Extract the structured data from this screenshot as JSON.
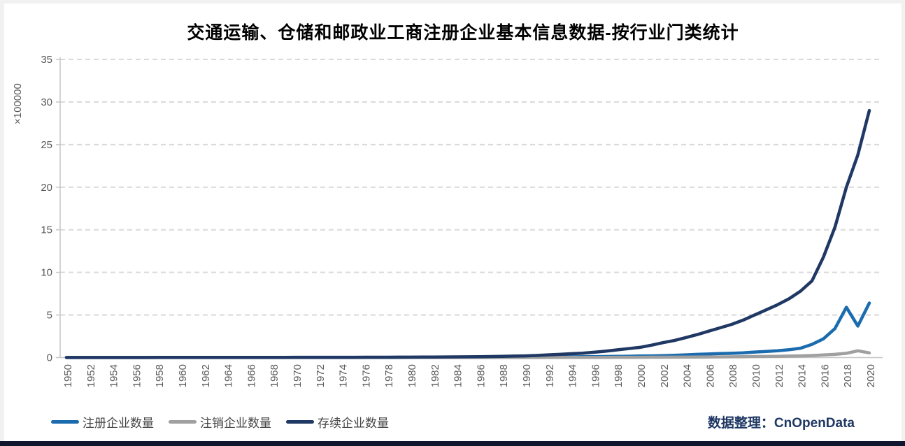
{
  "header": {
    "title": "交通运输、仓储和邮政业工商注册企业基本信息数据-按行业门类统计"
  },
  "footer": {
    "credit": "数据整理：CnOpenData"
  },
  "colors": {
    "registered_line": "#1b6cae",
    "deregistered_line": "#a0a0a0",
    "surviving_line": "#1f3864",
    "grid": "#d9d9d9",
    "axis": "#c6c6c6",
    "tick_text": "#595959",
    "credit_text": "#1f3864",
    "bottom_bar": "#11152e"
  },
  "chart_data": {
    "type": "line",
    "title": "交通运输、仓储和邮政业工商注册企业基本信息数据-按行业门类统计",
    "xlabel": "",
    "ylabel": "×100000",
    "ylim": [
      0,
      35
    ],
    "yticks": [
      0,
      5,
      10,
      15,
      20,
      25,
      30,
      35
    ],
    "xticks": [
      1950,
      1952,
      1954,
      1956,
      1958,
      1960,
      1962,
      1964,
      1966,
      1968,
      1970,
      1972,
      1974,
      1976,
      1978,
      1980,
      1982,
      1984,
      1986,
      1988,
      1990,
      1992,
      1994,
      1996,
      1998,
      2000,
      2002,
      2004,
      2006,
      2008,
      2010,
      2012,
      2014,
      2016,
      2018,
      2020
    ],
    "grid": "dashed-horizontal",
    "legend_position": "bottom-left",
    "x": [
      1950,
      1951,
      1952,
      1953,
      1954,
      1955,
      1956,
      1957,
      1958,
      1959,
      1960,
      1961,
      1962,
      1963,
      1964,
      1965,
      1966,
      1967,
      1968,
      1969,
      1970,
      1971,
      1972,
      1973,
      1974,
      1975,
      1976,
      1977,
      1978,
      1979,
      1980,
      1981,
      1982,
      1983,
      1984,
      1985,
      1986,
      1987,
      1988,
      1989,
      1990,
      1991,
      1992,
      1993,
      1994,
      1995,
      1996,
      1997,
      1998,
      1999,
      2000,
      2001,
      2002,
      2003,
      2004,
      2005,
      2006,
      2007,
      2008,
      2009,
      2010,
      2011,
      2012,
      2013,
      2014,
      2015,
      2016,
      2017,
      2018,
      2019,
      2020
    ],
    "series": [
      {
        "name": "注册企业数量",
        "color": "#1b6cae",
        "values": [
          0.01,
          0.01,
          0.01,
          0.01,
          0.01,
          0.01,
          0.01,
          0.01,
          0.01,
          0.01,
          0.01,
          0.01,
          0.01,
          0.01,
          0.01,
          0.01,
          0.01,
          0.01,
          0.01,
          0.01,
          0.01,
          0.01,
          0.01,
          0.01,
          0.01,
          0.01,
          0.01,
          0.01,
          0.01,
          0.01,
          0.02,
          0.02,
          0.02,
          0.03,
          0.03,
          0.03,
          0.04,
          0.04,
          0.04,
          0.05,
          0.05,
          0.06,
          0.07,
          0.08,
          0.09,
          0.1,
          0.11,
          0.12,
          0.14,
          0.16,
          0.18,
          0.2,
          0.23,
          0.27,
          0.32,
          0.38,
          0.42,
          0.47,
          0.5,
          0.55,
          0.65,
          0.72,
          0.8,
          0.92,
          1.1,
          1.55,
          2.2,
          3.4,
          5.9,
          3.7,
          6.4
        ]
      },
      {
        "name": "注销企业数量",
        "color": "#a0a0a0",
        "values": [
          0.01,
          0.01,
          0.01,
          0.01,
          0.01,
          0.01,
          0.01,
          0.01,
          0.01,
          0.01,
          0.01,
          0.01,
          0.01,
          0.01,
          0.01,
          0.01,
          0.01,
          0.01,
          0.01,
          0.01,
          0.01,
          0.01,
          0.01,
          0.01,
          0.01,
          0.01,
          0.01,
          0.01,
          0.01,
          0.01,
          0.01,
          0.01,
          0.01,
          0.01,
          0.01,
          0.01,
          0.01,
          0.01,
          0.01,
          0.01,
          0.01,
          0.01,
          0.02,
          0.02,
          0.02,
          0.02,
          0.02,
          0.02,
          0.03,
          0.03,
          0.03,
          0.04,
          0.04,
          0.05,
          0.05,
          0.06,
          0.07,
          0.08,
          0.09,
          0.1,
          0.12,
          0.13,
          0.15,
          0.17,
          0.2,
          0.24,
          0.3,
          0.38,
          0.5,
          0.8,
          0.55
        ]
      },
      {
        "name": "存续企业数量",
        "color": "#1f3864",
        "values": [
          0.01,
          0.01,
          0.01,
          0.01,
          0.01,
          0.01,
          0.01,
          0.01,
          0.02,
          0.02,
          0.02,
          0.02,
          0.02,
          0.02,
          0.02,
          0.02,
          0.02,
          0.02,
          0.02,
          0.02,
          0.03,
          0.03,
          0.03,
          0.03,
          0.03,
          0.03,
          0.04,
          0.04,
          0.04,
          0.05,
          0.05,
          0.06,
          0.06,
          0.07,
          0.08,
          0.09,
          0.1,
          0.12,
          0.14,
          0.17,
          0.2,
          0.25,
          0.32,
          0.38,
          0.45,
          0.52,
          0.62,
          0.75,
          0.9,
          1.05,
          1.2,
          1.45,
          1.75,
          2.0,
          2.35,
          2.7,
          3.1,
          3.5,
          3.9,
          4.4,
          5.0,
          5.6,
          6.2,
          6.9,
          7.8,
          9.0,
          11.8,
          15.3,
          20.0,
          23.8,
          29.0
        ]
      }
    ]
  }
}
